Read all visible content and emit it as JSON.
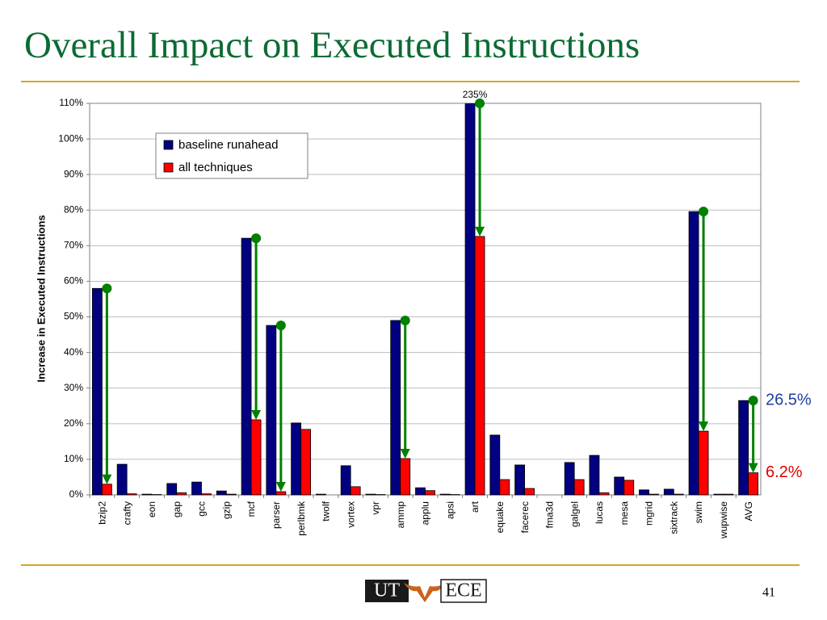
{
  "chart_data": {
    "type": "bar",
    "title": "Overall Impact on Executed Instructions",
    "y_label": "Increase in Executed Instructions",
    "categories": [
      "bzip2",
      "crafty",
      "eon",
      "gap",
      "gcc",
      "gzip",
      "mcf",
      "parser",
      "perlbmk",
      "twolf",
      "vortex",
      "vpr",
      "ammp",
      "applu",
      "apsi",
      "art",
      "equake",
      "facerec",
      "fma3d",
      "galgel",
      "lucas",
      "mesa",
      "mgrid",
      "sixtrack",
      "swim",
      "wupwise",
      "AVG"
    ],
    "series": [
      {
        "name": "baseline runahead",
        "color": "#000080",
        "values": [
          58,
          8.6,
          0.2,
          3.2,
          3.6,
          1.1,
          72.1,
          47.6,
          20.2,
          0.2,
          8.2,
          0.2,
          49,
          2,
          0.2,
          235,
          16.8,
          8.4,
          0,
          9.1,
          11.1,
          5,
          1.4,
          1.6,
          79.6,
          0.2,
          26.5
        ],
        "value_labels": [
          null,
          null,
          null,
          null,
          null,
          null,
          null,
          null,
          null,
          null,
          null,
          null,
          null,
          null,
          null,
          "235%",
          null,
          null,
          null,
          null,
          null,
          null,
          null,
          null,
          null,
          null,
          "26.5%"
        ]
      },
      {
        "name": "all techniques",
        "color": "#ff0000",
        "values": [
          3,
          0.3,
          0.1,
          0.6,
          0.3,
          0.2,
          21.1,
          0.9,
          18.4,
          0,
          2.3,
          0.1,
          10.2,
          1.2,
          0.1,
          72.6,
          4.3,
          1.8,
          0,
          4.3,
          0.6,
          4.1,
          0.2,
          0.2,
          17.9,
          0.2,
          6.2
        ],
        "value_labels": [
          null,
          null,
          null,
          null,
          null,
          null,
          null,
          null,
          null,
          null,
          null,
          null,
          null,
          null,
          null,
          null,
          null,
          null,
          null,
          null,
          null,
          null,
          null,
          null,
          null,
          null,
          "6.2%"
        ]
      }
    ],
    "ylim": [
      0,
      110
    ],
    "yticks": [
      {
        "value": 0,
        "label": "0%"
      },
      {
        "value": 10,
        "label": "10%"
      },
      {
        "value": 20,
        "label": "20%"
      },
      {
        "value": 30,
        "label": "30%"
      },
      {
        "value": 40,
        "label": "40%"
      },
      {
        "value": 50,
        "label": "50%"
      },
      {
        "value": 60,
        "label": "60%"
      },
      {
        "value": 70,
        "label": "70%"
      },
      {
        "value": 80,
        "label": "80%"
      },
      {
        "value": 90,
        "label": "90%"
      },
      {
        "value": 100,
        "label": "100%"
      },
      {
        "value": 110,
        "label": "110%"
      }
    ],
    "grid": true,
    "legend": "upper left",
    "arrow_color": "#008000",
    "arrows": [
      0,
      6,
      7,
      12,
      15,
      24,
      26
    ]
  },
  "footer": {
    "logo_left": "UT",
    "logo_right": "ECE",
    "page": "41"
  }
}
